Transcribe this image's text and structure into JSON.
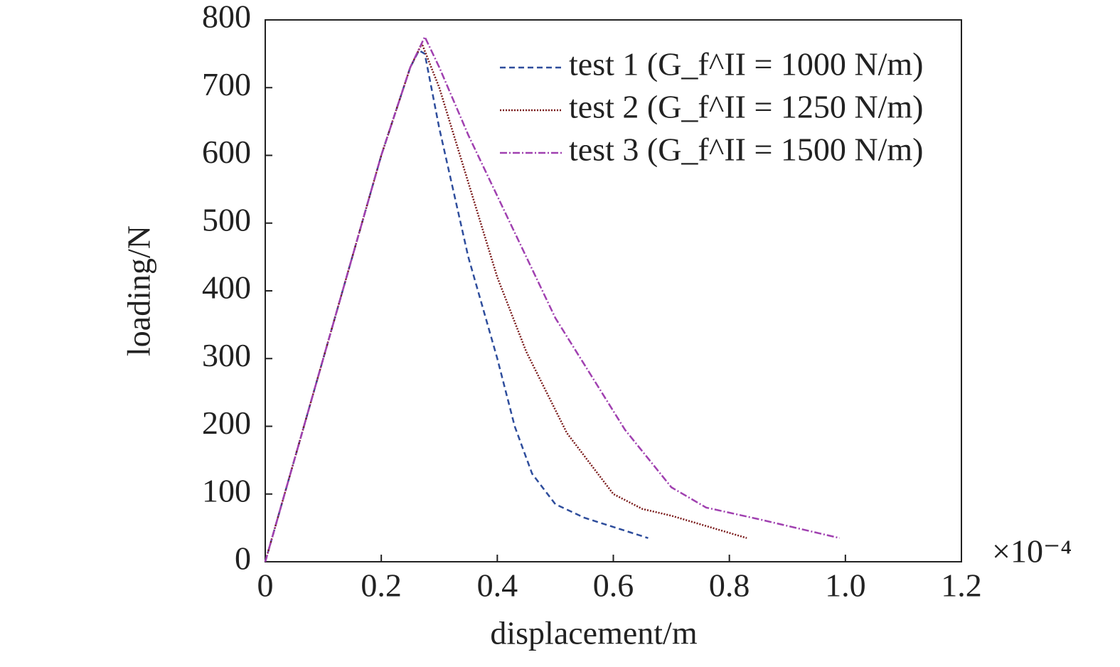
{
  "chart_data": {
    "type": "line",
    "xlabel": "displacement/m",
    "ylabel": "loading/N",
    "x_multiplier": "×10⁻⁴",
    "xlim": [
      0,
      1.2
    ],
    "ylim": [
      0,
      800
    ],
    "xticks": [
      0,
      0.2,
      0.4,
      0.6,
      0.8,
      {
        "value": 1,
        "label": "1.0"
      },
      1.2
    ],
    "yticks": [
      0,
      100,
      200,
      300,
      400,
      500,
      600,
      700,
      800
    ],
    "legend": "upper right",
    "series": [
      {
        "name": "test 1 (G_f^II = 1000 N/m)",
        "color": "#2e4d9c",
        "dash": "8,5",
        "x": [
          0,
          0.1,
          0.2,
          0.25,
          0.265,
          0.275,
          0.3,
          0.35,
          0.4,
          0.43,
          0.46,
          0.5,
          0.55,
          0.66
        ],
        "values": [
          0,
          300,
          600,
          730,
          755,
          750,
          640,
          450,
          300,
          200,
          130,
          85,
          65,
          35
        ]
      },
      {
        "name": "test 2 (G_f^II = 1250 N/m)",
        "color": "#7a1a1a",
        "dash": "2,2",
        "x": [
          0,
          0.1,
          0.2,
          0.25,
          0.27,
          0.3,
          0.35,
          0.4,
          0.45,
          0.52,
          0.6,
          0.65,
          0.7,
          0.83
        ],
        "values": [
          0,
          300,
          600,
          730,
          765,
          700,
          560,
          420,
          310,
          190,
          100,
          78,
          68,
          35
        ]
      },
      {
        "name": "test 3 (G_f^II = 1500 N/m)",
        "color": "#a040b0",
        "dash": "10,3,2,3",
        "x": [
          0,
          0.1,
          0.2,
          0.25,
          0.275,
          0.3,
          0.35,
          0.4,
          0.5,
          0.62,
          0.7,
          0.76,
          0.85,
          0.99
        ],
        "values": [
          0,
          300,
          600,
          730,
          775,
          730,
          630,
          540,
          360,
          195,
          110,
          80,
          63,
          35
        ]
      }
    ]
  }
}
